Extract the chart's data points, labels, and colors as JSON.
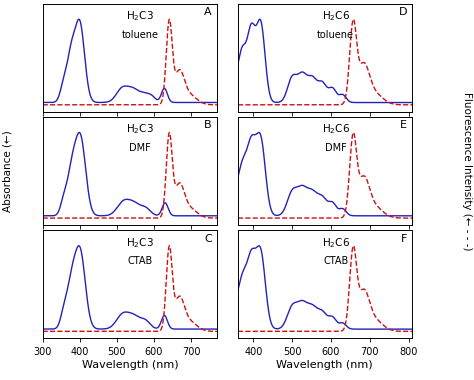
{
  "panels": [
    {
      "label": "A",
      "compound": "H$_2$C3",
      "solvent": "toluene",
      "col": 0,
      "row": 0
    },
    {
      "label": "B",
      "compound": "H$_2$C3",
      "solvent": "DMF",
      "col": 0,
      "row": 1
    },
    {
      "label": "C",
      "compound": "H$_2$C3",
      "solvent": "CTAB",
      "col": 0,
      "row": 2
    },
    {
      "label": "D",
      "compound": "H$_2$C6",
      "solvent": "toluene",
      "col": 1,
      "row": 0
    },
    {
      "label": "E",
      "compound": "H$_2$C6",
      "solvent": "DMF",
      "col": 1,
      "row": 1
    },
    {
      "label": "F",
      "compound": "H$_2$C6",
      "solvent": "CTAB",
      "col": 1,
      "row": 2
    }
  ],
  "left_xlim": [
    300,
    770
  ],
  "right_xlim": [
    360,
    810
  ],
  "left_xticks": [
    300,
    400,
    500,
    600,
    700
  ],
  "right_xticks": [
    400,
    500,
    600,
    700,
    800
  ],
  "abs_color": "#2222bb",
  "emi_color": "#cc1111",
  "abs_lw": 1.0,
  "emi_lw": 1.0,
  "bg_color": "#ffffff",
  "xlabel": "Wavelength (nm)",
  "left_ylabel": "Absorbance (←)",
  "right_ylabel": "Fluorescence Intensity (← - - -)"
}
